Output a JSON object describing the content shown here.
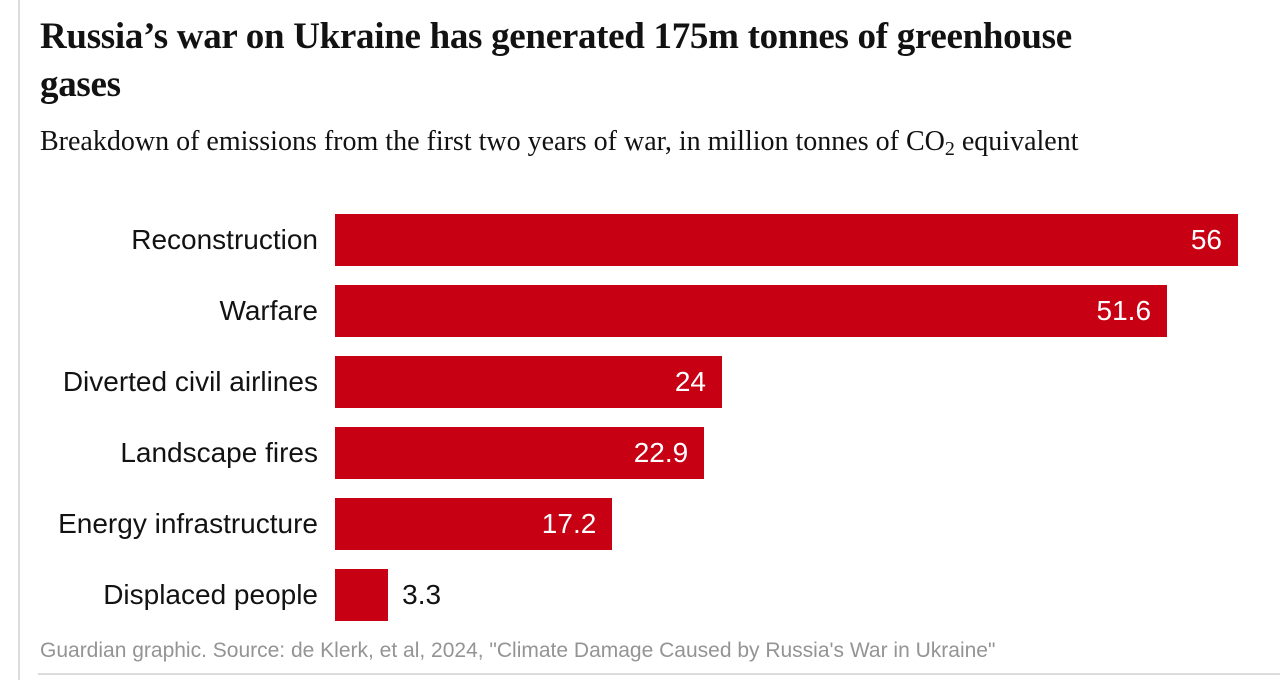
{
  "header": {
    "title": "Russia’s war on Ukraine has generated 175m tonnes of greenhouse gases",
    "subtitle_pre": "Breakdown of emissions from the first two years of war, in million tonnes of CO",
    "subtitle_sub": "2",
    "subtitle_post": " equivalent"
  },
  "chart_data": {
    "type": "bar",
    "orientation": "horizontal",
    "title": "Russia’s war on Ukraine has generated 175m tonnes of greenhouse gases",
    "subtitle": "Breakdown of emissions from the first two years of war, in million tonnes of CO2 equivalent",
    "categories": [
      "Reconstruction",
      "Warfare",
      "Diverted civil airlines",
      "Landscape fires",
      "Energy infrastructure",
      "Displaced people"
    ],
    "values": [
      56,
      51.6,
      24,
      22.9,
      17.2,
      3.3
    ],
    "value_labels": [
      "56",
      "51.6",
      "24",
      "22.9",
      "17.2",
      "3.3"
    ],
    "xlim": [
      0,
      56
    ],
    "grid": false,
    "legend": false,
    "bar_color": "#c70013",
    "value_label_inside_color": "#ffffff",
    "value_label_outside_color": "#121212"
  },
  "footer": {
    "source": "Guardian graphic. Source: de Klerk, et al, 2024, \"Climate Damage Caused by Russia's War in Ukraine\""
  },
  "colors": {
    "bar": "#c70013",
    "title_text": "#121212",
    "source_text": "#949494",
    "rule": "#dcdcdc",
    "background": "#ffffff"
  }
}
